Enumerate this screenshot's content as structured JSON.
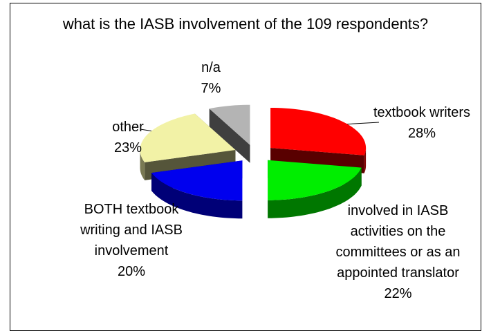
{
  "chart_data": {
    "type": "pie",
    "title": "what is the IASB involvement of the 109 respondents?",
    "categories": [
      "textbook writers",
      "involved in IASB activities on the committees or as an appointed translator",
      "BOTH textbook writing and IASB involvement",
      "other",
      "n/a"
    ],
    "values": [
      28,
      22,
      20,
      23,
      7
    ],
    "value_labels": [
      "28%",
      "22%",
      "20%",
      "23%",
      "7%"
    ],
    "colors": [
      "#ff0000",
      "#00ee00",
      "#0000ee",
      "#f2f2a6",
      "#b4b4b4"
    ]
  }
}
